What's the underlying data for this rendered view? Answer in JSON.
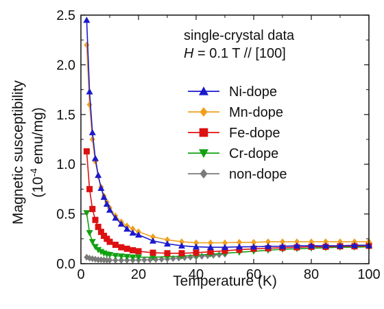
{
  "chart_data": {
    "type": "line",
    "xlabel": "Temperature (K)",
    "ylabel": "Magnetic susceptibility",
    "ylabel_unit_prefix": "(10",
    "ylabel_unit_exp": "-4",
    "ylabel_unit_suffix": " emu/mg)",
    "xlim": [
      0,
      100
    ],
    "ylim": [
      0,
      2.5
    ],
    "x_ticks": [
      0,
      20,
      40,
      60,
      80,
      100
    ],
    "x_tick_labels": [
      "0",
      "20",
      "40",
      "60",
      "80",
      "100"
    ],
    "y_ticks": [
      0,
      0.5,
      1.0,
      1.5,
      2.0,
      2.5
    ],
    "y_tick_labels": [
      "0.0",
      "0.5",
      "1.0",
      "1.5",
      "2.0",
      "2.5"
    ],
    "annotations": [
      "single-crystal data",
      "H = 0.1 T // [100]"
    ],
    "annotation_line2_italic": "H",
    "annotation_line2_rest": " = 0.1 T // [100]",
    "legend_position": "top-right",
    "series": [
      {
        "name": "Ni-dope",
        "color": "#1a1acc",
        "marker": "triangle-up",
        "x": [
          2,
          3,
          4,
          5,
          6,
          7,
          8,
          9,
          10,
          12,
          14,
          16,
          18,
          20,
          25,
          30,
          35,
          40,
          45,
          50,
          55,
          60,
          65,
          70,
          75,
          80,
          85,
          90,
          95,
          100
        ],
        "y": [
          2.45,
          1.73,
          1.32,
          1.06,
          0.89,
          0.76,
          0.67,
          0.6,
          0.54,
          0.46,
          0.4,
          0.35,
          0.31,
          0.29,
          0.23,
          0.2,
          0.18,
          0.17,
          0.165,
          0.165,
          0.17,
          0.17,
          0.175,
          0.175,
          0.18,
          0.18,
          0.18,
          0.18,
          0.185,
          0.185
        ]
      },
      {
        "name": "Mn-dope",
        "color": "#f0a020",
        "marker": "diamond",
        "x": [
          2,
          3,
          4,
          5,
          6,
          7,
          8,
          9,
          10,
          12,
          14,
          16,
          18,
          20,
          25,
          30,
          35,
          40,
          45,
          50,
          55,
          60,
          65,
          70,
          75,
          80,
          85,
          90,
          95,
          100
        ],
        "y": [
          2.2,
          1.6,
          1.25,
          1.03,
          0.88,
          0.77,
          0.68,
          0.62,
          0.56,
          0.48,
          0.42,
          0.38,
          0.35,
          0.32,
          0.27,
          0.24,
          0.22,
          0.21,
          0.21,
          0.21,
          0.215,
          0.215,
          0.22,
          0.22,
          0.22,
          0.22,
          0.22,
          0.22,
          0.22,
          0.22
        ]
      },
      {
        "name": "Fe-dope",
        "color": "#dd1111",
        "marker": "square",
        "x": [
          2,
          3,
          4,
          5,
          6,
          7,
          8,
          9,
          10,
          12,
          14,
          16,
          18,
          20,
          25,
          30,
          35,
          40,
          45,
          50,
          55,
          60,
          65,
          70,
          75,
          80,
          85,
          90,
          95,
          100
        ],
        "y": [
          1.13,
          0.75,
          0.55,
          0.44,
          0.37,
          0.32,
          0.28,
          0.25,
          0.22,
          0.19,
          0.165,
          0.15,
          0.135,
          0.125,
          0.11,
          0.105,
          0.105,
          0.11,
          0.12,
          0.13,
          0.14,
          0.15,
          0.155,
          0.16,
          0.165,
          0.17,
          0.17,
          0.175,
          0.175,
          0.18
        ]
      },
      {
        "name": "Cr-dope",
        "color": "#12a012",
        "marker": "triangle-down",
        "x": [
          2,
          3,
          4,
          5,
          6,
          7,
          8,
          9,
          10,
          12,
          14,
          16,
          18,
          20,
          25,
          30,
          35,
          40,
          45,
          50,
          55,
          60,
          65,
          70,
          75,
          80,
          85,
          90,
          95,
          100
        ],
        "y": [
          0.51,
          0.31,
          0.22,
          0.17,
          0.14,
          0.12,
          0.105,
          0.095,
          0.09,
          0.08,
          0.075,
          0.07,
          0.065,
          0.065,
          0.065,
          0.07,
          0.075,
          0.085,
          0.095,
          0.105,
          0.115,
          0.125,
          0.135,
          0.145,
          0.15,
          0.155,
          0.16,
          0.165,
          0.165,
          0.17
        ]
      },
      {
        "name": "non-dope",
        "color": "#7a7a7a",
        "marker": "diamond",
        "x": [
          2,
          3,
          4,
          5,
          6,
          7,
          8,
          9,
          10,
          12,
          14,
          16,
          18,
          20,
          22,
          24,
          26,
          28,
          30,
          32,
          34,
          36,
          38,
          40,
          42,
          44,
          46,
          48,
          50
        ],
        "y": [
          0.065,
          0.055,
          0.05,
          0.045,
          0.04,
          0.04,
          0.038,
          0.036,
          0.035,
          0.035,
          0.035,
          0.035,
          0.036,
          0.037,
          0.038,
          0.04,
          0.042,
          0.045,
          0.048,
          0.052,
          0.056,
          0.06,
          0.065,
          0.07,
          0.075,
          0.08,
          0.085,
          0.09,
          0.095
        ]
      }
    ]
  }
}
